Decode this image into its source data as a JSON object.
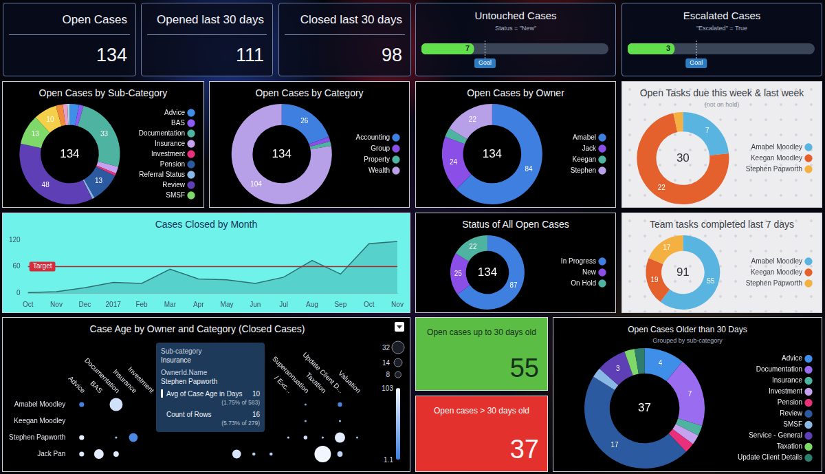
{
  "kpis": [
    {
      "title": "Open Cases",
      "value": 134
    },
    {
      "title": "Opened last 30 days",
      "value": 111
    },
    {
      "title": "Closed last 30 days",
      "value": 98
    }
  ],
  "gauges": [
    {
      "title": "Untouched Cases",
      "subtitle": "Status = \"New\"",
      "value": 7,
      "goal": 8.5,
      "goal_label": "Goal",
      "xlim": [
        0,
        25
      ],
      "color": "#62e04c",
      "tick_labels": false
    },
    {
      "title": "Escalated Cases",
      "subtitle": "\"Escalated\" = True",
      "value": 3,
      "goal": 4.4,
      "goal_label": "Goal",
      "xlim": [
        0,
        12
      ],
      "color": "#62e04c",
      "tick_labels": false
    }
  ],
  "chart_data": [
    {
      "type": "doughnut",
      "title": "Open Cases by Sub-Category",
      "categories": [
        "Advice",
        "BAS",
        "Documentation",
        "Insurance",
        "Investment",
        "Pension",
        "Referral Status",
        "Review",
        "SMSF",
        null,
        null,
        null,
        null
      ],
      "values": [
        4,
        2,
        33,
        3,
        1,
        13,
        1,
        48,
        13,
        10,
        3,
        2,
        1
      ],
      "colors": [
        "#3f8ee8",
        "#8b5cf6",
        "#4fb3a1",
        "#c6a1f0",
        "#e8317a",
        "#2c5aa0",
        "#8ab8e6",
        "#5e3fb5",
        "#7fd86a",
        "#f3cf4a",
        "#f08a3a",
        "#e8a0c8",
        "#a6d4f2"
      ],
      "value_labels": [
        null,
        null,
        "33",
        null,
        null,
        "13",
        null,
        "48",
        "13",
        "10",
        null,
        null,
        null
      ],
      "data_labels": true,
      "total": 134,
      "legend": "right"
    },
    {
      "type": "doughnut",
      "title": "Open Cases by Category",
      "categories": [
        "Accounting",
        "Group",
        "Property",
        "Wealth"
      ],
      "values": [
        26,
        2,
        2,
        104
      ],
      "colors": [
        "#3f7fe0",
        "#8b4fe8",
        "#4fb3a1",
        "#b8a0e8"
      ],
      "value_labels": [
        "26",
        null,
        null,
        "104"
      ],
      "data_labels": true,
      "total": 134,
      "legend": "right"
    },
    {
      "type": "doughnut",
      "title": "Open Cases by Owner",
      "categories": [
        "Amabel",
        "Jack",
        "Keegan",
        "Stephen"
      ],
      "values": [
        84,
        24,
        4,
        22
      ],
      "colors": [
        "#3f7fe0",
        "#8b4fe8",
        "#4fb3a1",
        "#b8a0e8"
      ],
      "value_labels": [
        "84",
        "24",
        null,
        "22"
      ],
      "data_labels": true,
      "total": 134,
      "legend": "right"
    },
    {
      "type": "doughnut",
      "title": "Open Tasks due this week & last week",
      "subtitle": "(not on hold)",
      "categories": [
        "Amabel Moodley",
        "Keegan Moodley",
        "Stephen Papworth"
      ],
      "values": [
        7,
        22,
        1
      ],
      "colors": [
        "#5ab4e0",
        "#e4602c",
        "#f5b042"
      ],
      "value_labels": [
        "7",
        "22",
        null
      ],
      "data_labels": true,
      "total": 30,
      "legend": "right"
    },
    {
      "type": "line",
      "title": "Cases Closed by Month",
      "categories": [
        "Oct",
        "Nov",
        "Dec",
        "2017",
        "Feb",
        "Mar",
        "Apr",
        "May",
        "Jun",
        "Jul",
        "Aug",
        "Sep",
        "Oct",
        "Nov"
      ],
      "values": [
        1,
        3,
        12,
        24,
        22,
        54,
        32,
        30,
        22,
        36,
        74,
        43,
        112,
        117
      ],
      "color": "#2f6f70",
      "ylim": [
        0,
        120
      ],
      "yticks": [
        0,
        60,
        120
      ],
      "grid": false,
      "target": {
        "value": 60,
        "label": "Target"
      }
    },
    {
      "type": "doughnut",
      "title": "Status of All Open Cases",
      "categories": [
        "In Progress",
        "New",
        "On Hold"
      ],
      "values": [
        87,
        25,
        22
      ],
      "colors": [
        "#3f7fe0",
        "#8b4fe8",
        "#4fb3a1"
      ],
      "value_labels": [
        "87",
        "25",
        "22"
      ],
      "data_labels": true,
      "total": 134,
      "legend": "right"
    },
    {
      "type": "doughnut",
      "title": "Team tasks completed last 7 days",
      "categories": [
        "Amabel Moodley",
        "Keegan Moodley",
        "Stephen Papworth"
      ],
      "values": [
        55,
        19,
        17
      ],
      "colors": [
        "#5ab4e0",
        "#e4602c",
        "#f5b042"
      ],
      "value_labels": [
        "55",
        "19",
        "17"
      ],
      "data_labels": true,
      "total": 91,
      "legend": "right"
    },
    {
      "type": "bubble",
      "title": "Case Age by Owner and Category (Closed Cases)",
      "categories": [
        "Advice",
        "BAS",
        "Documentation",
        "Insurance",
        "Investment",
        null,
        null,
        null,
        null,
        null,
        null,
        null,
        "/ Exc...",
        "Superannuation",
        "Taxation",
        "Update Client D...",
        "Valuation"
      ],
      "series": [
        {
          "name": "Amabel Moodley",
          "count": [
            5,
            null,
            35,
            null,
            null,
            null,
            null,
            null,
            null,
            null,
            null,
            null,
            null,
            1,
            null,
            4,
            null
          ],
          "avg_age": [
            4,
            null,
            85,
            null,
            null,
            null,
            null,
            null,
            null,
            null,
            null,
            null,
            null,
            30,
            null,
            6,
            null
          ]
        },
        {
          "name": "Keegan Moodley",
          "count": [
            null,
            null,
            null,
            null,
            null,
            null,
            null,
            null,
            null,
            null,
            null,
            null,
            null,
            1,
            null,
            1,
            null
          ],
          "avg_age": [
            null,
            null,
            null,
            null,
            null,
            null,
            null,
            null,
            null,
            null,
            null,
            null,
            null,
            40,
            null,
            50,
            null
          ]
        },
        {
          "name": "Stephen Papworth",
          "count": [
            5,
            null,
            1,
            16,
            null,
            null,
            null,
            null,
            null,
            null,
            null,
            null,
            1,
            3,
            1,
            22,
            1
          ],
          "avg_age": [
            95,
            null,
            60,
            10,
            null,
            null,
            null,
            null,
            null,
            null,
            null,
            null,
            70,
            80,
            60,
            95,
            50
          ]
        },
        {
          "name": "Jack Pan",
          "count": [
            5,
            19,
            6,
            null,
            null,
            null,
            null,
            null,
            null,
            16,
            2,
            2,
            null,
            null,
            56,
            6,
            null
          ],
          "avg_age": [
            90,
            95,
            92,
            null,
            null,
            null,
            null,
            null,
            null,
            88,
            70,
            70,
            null,
            null,
            103,
            75,
            null
          ]
        }
      ],
      "size_legend": [
        32,
        14,
        8
      ],
      "color_range": [
        1.1,
        103
      ],
      "color_ticks": [
        103,
        1.1
      ],
      "tooltip": {
        "rows": [
          {
            "label": "Sub-category",
            "value": "Insurance"
          },
          {
            "label": "OwnerId.Name",
            "value": "Stephen Papworth"
          }
        ],
        "measures": [
          {
            "label": "Avg of Case Age in Days",
            "value": 10,
            "detail": "(1.75% of 583)"
          },
          {
            "label": "Count of Rows",
            "value": 16,
            "detail": "(5.73% of 279)"
          }
        ]
      }
    },
    {
      "type": "doughnut",
      "title": "Open Cases Older than 30 Days",
      "subtitle": "Grouped by sub-category",
      "categories": [
        "Advice",
        "Documentation",
        "Insurance",
        "Investment",
        "Pension",
        "Review",
        "SMSF",
        "Service - General",
        "Taxation",
        "Update Client Details"
      ],
      "values": [
        4,
        7,
        1,
        1,
        1,
        17,
        1,
        3,
        1,
        1
      ],
      "colors": [
        "#3f8ee8",
        "#9a6cf0",
        "#4fb3a1",
        "#c6a1f0",
        "#e8317a",
        "#2c5aa0",
        "#8ab8e6",
        "#5e3fb5",
        "#7fd86a",
        "#2f7d6d"
      ],
      "value_labels": [
        "4",
        "7",
        null,
        null,
        null,
        "17",
        null,
        "3",
        null,
        null
      ],
      "data_labels": true,
      "total": 37,
      "legend": "right"
    }
  ],
  "age_tiles": [
    {
      "title": "Open cases up to 30 days old",
      "value": 55,
      "color": "#5cbd45"
    },
    {
      "title": "Open cases > 30 days old",
      "value": 37,
      "color": "#e3322e"
    }
  ]
}
